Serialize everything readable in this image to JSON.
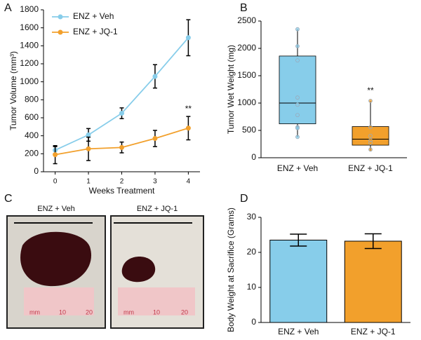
{
  "chart_data": [
    {
      "type": "line",
      "panel_label": "A",
      "x_label": "Weeks Treatment",
      "y_label": "Tumor Volume (mm³)",
      "x": [
        0,
        1,
        2,
        3,
        4
      ],
      "xlim": [
        -0.35,
        4.35
      ],
      "xticks": [
        0,
        1,
        2,
        3,
        4
      ],
      "ylim": [
        0,
        1800
      ],
      "yticks": [
        0,
        200,
        400,
        600,
        800,
        1000,
        1200,
        1400,
        1600,
        1800
      ],
      "legend": "upper left",
      "annotation": "**",
      "series": [
        {
          "name": "ENZ + Veh",
          "color": "#87cdea",
          "values": [
            240,
            410,
            650,
            1060,
            1490
          ],
          "errors": [
            40,
            70,
            60,
            130,
            200
          ]
        },
        {
          "name": "ENZ + JQ-1",
          "color": "#f2a02c",
          "values": [
            190,
            255,
            270,
            370,
            485
          ],
          "errors": [
            100,
            130,
            60,
            90,
            130
          ]
        }
      ]
    },
    {
      "type": "box",
      "panel_label": "B",
      "y_label": "Tumor Wet Weight (mg)",
      "annotation": "**",
      "categories": [
        "ENZ + Veh",
        "ENZ + JQ-1"
      ],
      "ylim": [
        0,
        2500
      ],
      "yticks": [
        0,
        500,
        1000,
        1500,
        2000,
        2500
      ],
      "boxes": [
        {
          "color": "#87cdea",
          "whisker_low": 380,
          "q1": 620,
          "median": 1000,
          "q3": 1860,
          "whisker_high": 2350,
          "points": [
            2350,
            2040,
            1780,
            1100,
            970,
            780,
            560,
            540,
            380
          ]
        },
        {
          "color": "#f2a02c",
          "whisker_low": 130,
          "q1": 230,
          "median": 340,
          "q3": 570,
          "whisker_high": 1040,
          "points": [
            1040,
            560,
            400,
            320,
            270,
            150
          ]
        }
      ]
    },
    {
      "type": "bar",
      "panel_label": "D",
      "y_label": "Body Weight at Sacrifice (Grams)",
      "categories": [
        "ENZ + Veh",
        "ENZ + JQ-1"
      ],
      "values": [
        23.5,
        23.2
      ],
      "errors": [
        1.7,
        2.1
      ],
      "colors": [
        "#87cdea",
        "#f2a02c"
      ],
      "ylim": [
        0,
        30
      ],
      "yticks": [
        0,
        10,
        20,
        30
      ]
    }
  ],
  "photos": {
    "panel_label": "C",
    "images": [
      {
        "label": "ENZ + Veh",
        "ruler": [
          "mm",
          "10",
          "20"
        ]
      },
      {
        "label": "ENZ + JQ-1",
        "ruler": [
          "mm",
          "10",
          "20"
        ]
      }
    ]
  }
}
